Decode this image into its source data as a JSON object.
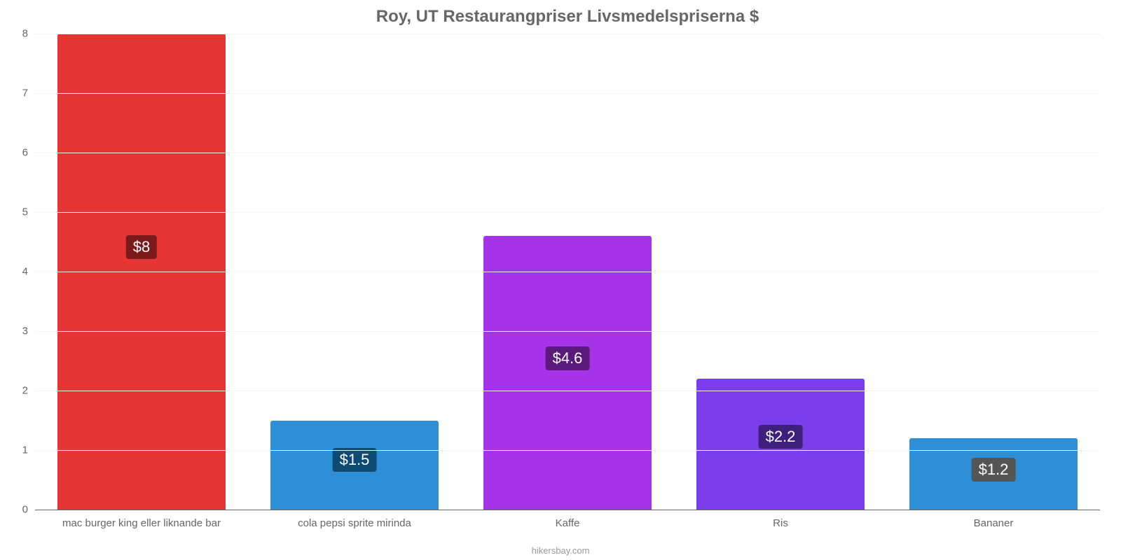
{
  "chart": {
    "type": "bar",
    "title": "Roy, UT Restaurangpriser Livsmedelspriserna $",
    "title_fontsize": 24,
    "title_color": "#666666",
    "attribution": "hikersbay.com",
    "attribution_color": "#999999",
    "background_color": "#ffffff",
    "grid_color": "#f5f5f5",
    "axis_color": "#666666",
    "ylim": [
      0,
      8
    ],
    "ytick_step": 1,
    "yticks": [
      0,
      1,
      2,
      3,
      4,
      5,
      6,
      7,
      8
    ],
    "bar_width_ratio": 0.8,
    "categories": [
      "mac burger king eller liknande bar",
      "cola pepsi sprite mirinda",
      "Kaffe",
      "Ris",
      "Bananer"
    ],
    "values": [
      8,
      1.5,
      4.6,
      2.2,
      1.2
    ],
    "value_labels": [
      "$8",
      "$1.5",
      "$4.6",
      "$2.2",
      "$1.2"
    ],
    "bar_colors": [
      "#e63535",
      "#2f8fd6",
      "#a733e8",
      "#7a3eea",
      "#2f8fd6"
    ],
    "label_bg_colors": [
      "#7a1a1a",
      "#0f4a73",
      "#5a1a7d",
      "#3f1f7d",
      "#555555"
    ],
    "label_fontsize": 22,
    "xlabel_fontsize": 15,
    "ylabel_fontsize": 15
  }
}
